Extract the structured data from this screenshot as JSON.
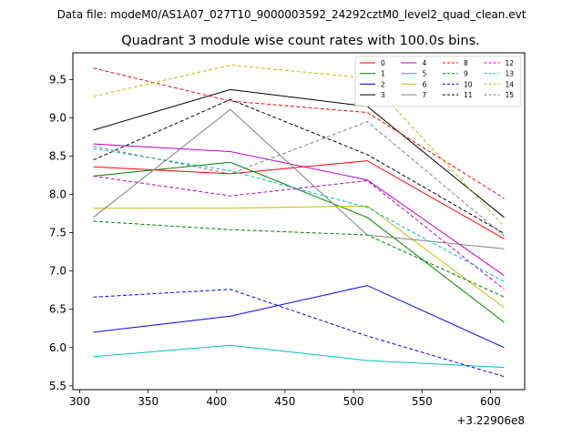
{
  "suptitle": "Data file: modeM0/AS1A07_027T10_9000003592_24292cztM0_level2_quad_clean.evt",
  "chart_data": {
    "type": "line",
    "title": "Quadrant 3 module wise count rates with 100.0s bins.",
    "xlabel": "",
    "ylabel": "",
    "x_offset_label": "+3.22906e8",
    "x": [
      310,
      410,
      510,
      610
    ],
    "xlim": [
      295,
      625
    ],
    "ylim": [
      5.45,
      9.85
    ],
    "xticks": [
      300,
      350,
      400,
      450,
      500,
      550,
      600
    ],
    "xtick_labels": [
      "300",
      "350",
      "400",
      "450",
      "500",
      "550",
      "600"
    ],
    "yticks": [
      5.5,
      6.0,
      6.5,
      7.0,
      7.5,
      8.0,
      8.5,
      9.0,
      9.5
    ],
    "ytick_labels": [
      "5.5",
      "6.0",
      "6.5",
      "7.0",
      "7.5",
      "8.0",
      "8.5",
      "9.0",
      "9.5"
    ],
    "grid": false,
    "legend_position": "top-right",
    "series": [
      {
        "name": "0",
        "color": "#ff0000",
        "dashed": false,
        "values": [
          8.36,
          8.27,
          8.44,
          7.42
        ]
      },
      {
        "name": "1",
        "color": "#008000",
        "dashed": false,
        "values": [
          8.24,
          8.42,
          7.7,
          6.33
        ]
      },
      {
        "name": "2",
        "color": "#0000ff",
        "dashed": false,
        "values": [
          6.2,
          6.41,
          6.81,
          6.0
        ]
      },
      {
        "name": "3",
        "color": "#000000",
        "dashed": false,
        "values": [
          8.84,
          9.37,
          9.15,
          7.7
        ]
      },
      {
        "name": "4",
        "color": "#bf00bf",
        "dashed": false,
        "values": [
          8.66,
          8.56,
          8.19,
          6.94
        ]
      },
      {
        "name": "5",
        "color": "#00bfbf",
        "dashed": false,
        "values": [
          5.88,
          6.03,
          5.83,
          5.74
        ]
      },
      {
        "name": "6",
        "color": "#bfbf00",
        "dashed": false,
        "values": [
          7.82,
          7.82,
          7.85,
          6.52
        ]
      },
      {
        "name": "7",
        "color": "#808080",
        "dashed": false,
        "values": [
          7.7,
          9.11,
          7.47,
          7.29
        ]
      },
      {
        "name": "8",
        "color": "#ff0000",
        "dashed": true,
        "values": [
          9.65,
          9.22,
          9.07,
          7.95
        ]
      },
      {
        "name": "9",
        "color": "#008000",
        "dashed": true,
        "values": [
          7.65,
          7.54,
          7.47,
          6.66
        ]
      },
      {
        "name": "10",
        "color": "#0000ff",
        "dashed": true,
        "values": [
          6.66,
          6.76,
          6.15,
          5.62
        ]
      },
      {
        "name": "11",
        "color": "#000000",
        "dashed": true,
        "values": [
          8.45,
          9.24,
          8.52,
          7.49
        ]
      },
      {
        "name": "12",
        "color": "#bf00bf",
        "dashed": true,
        "values": [
          8.24,
          7.98,
          8.18,
          6.76
        ]
      },
      {
        "name": "13",
        "color": "#00bfbf",
        "dashed": true,
        "values": [
          8.6,
          8.31,
          7.83,
          6.86
        ]
      },
      {
        "name": "14",
        "color": "#bfbf00",
        "dashed": true,
        "values": [
          9.28,
          9.69,
          9.52,
          7.58
        ]
      },
      {
        "name": "15",
        "color": "#808080",
        "dashed": true,
        "values": [
          8.63,
          8.27,
          8.95,
          7.46
        ]
      }
    ]
  }
}
